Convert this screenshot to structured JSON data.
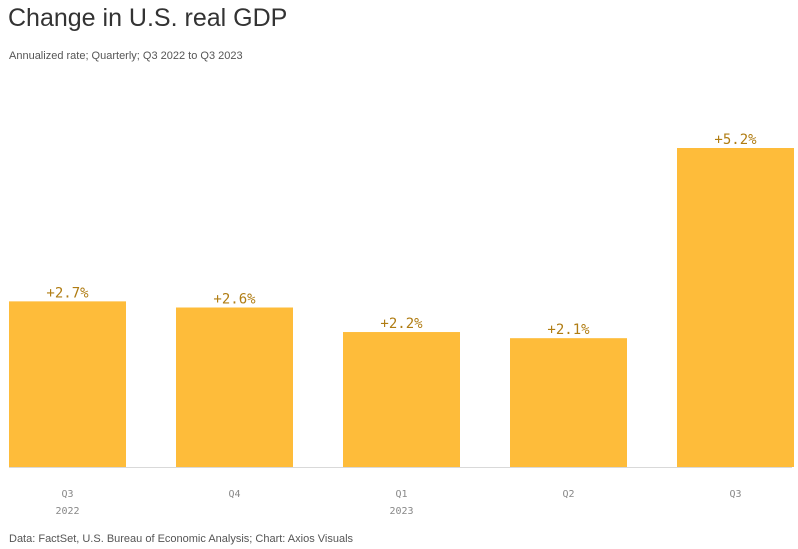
{
  "header": {
    "title": "Change in U.S. real GDP",
    "subtitle": "Annualized rate; Quarterly; Q3 2022 to Q3 2023"
  },
  "footer": {
    "source": "Data: FactSet, U.S. Bureau of Economic Analysis; Chart: Axios Visuals"
  },
  "colors": {
    "bar": "#FEBC3A",
    "value_label": "#B07C12",
    "axis_text": "#888888",
    "baseline": "#D9D9D9"
  },
  "chart_data": {
    "type": "bar",
    "title": "Change in U.S. real GDP",
    "subtitle": "Annualized rate; Quarterly; Q3 2022 to Q3 2023",
    "xlabel": "",
    "ylabel": "",
    "ylim": [
      0,
      5.2
    ],
    "grid": false,
    "legend": "none",
    "categories": [
      "Q3",
      "Q4",
      "Q1",
      "Q2",
      "Q3"
    ],
    "year_labels": [
      "2022",
      "",
      "2023",
      "",
      ""
    ],
    "values": [
      2.7,
      2.6,
      2.2,
      2.1,
      5.2
    ],
    "value_labels": [
      "+2.7%",
      "+2.6%",
      "+2.2%",
      "+2.1%",
      "+5.2%"
    ]
  }
}
